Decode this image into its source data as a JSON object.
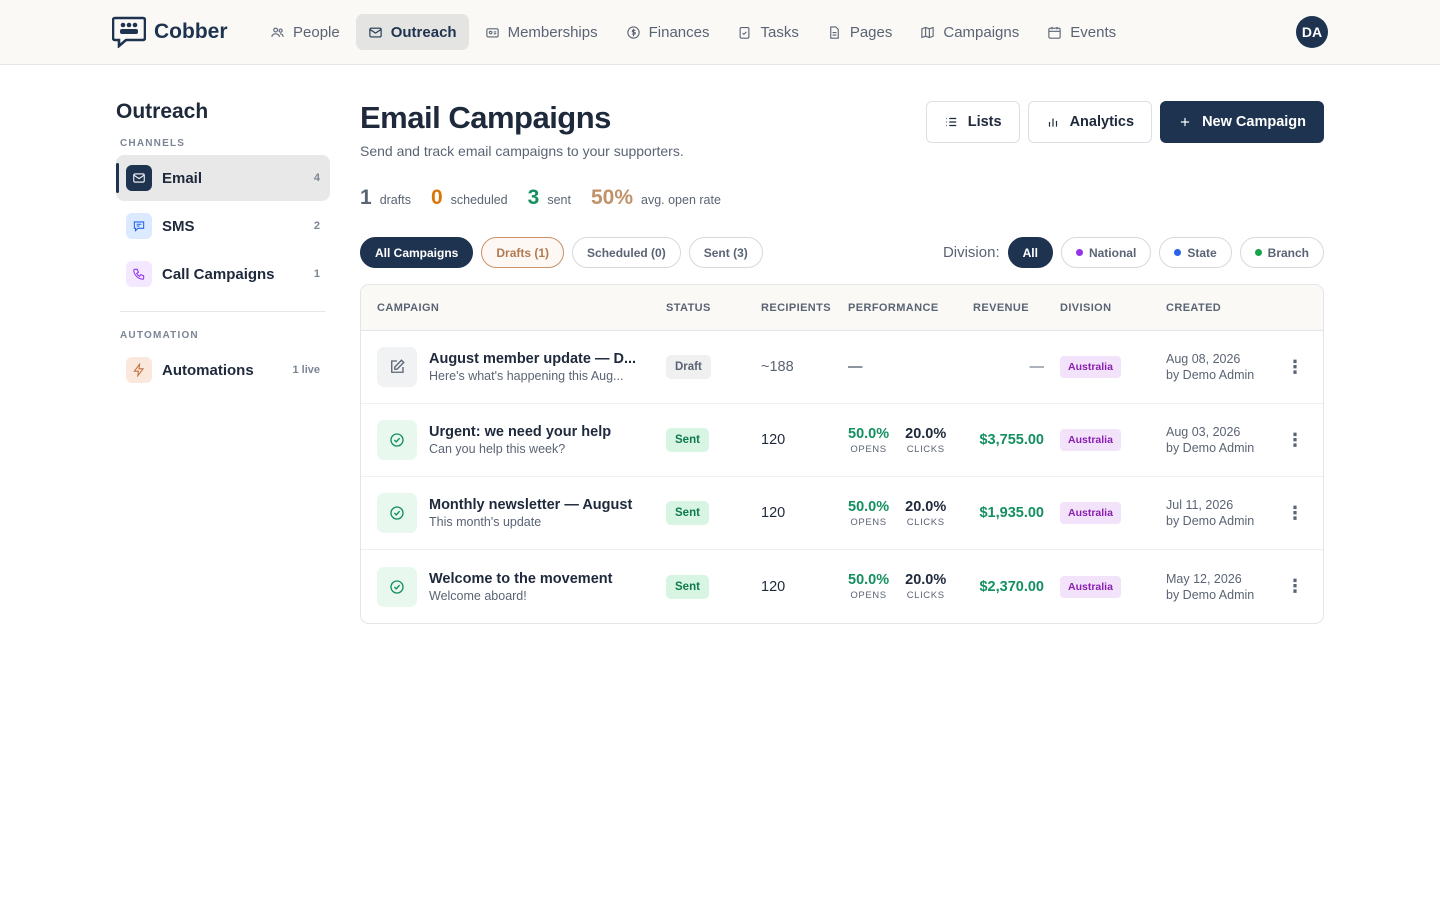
{
  "nav": {
    "brand": "Cobber",
    "items": [
      "People",
      "Outreach",
      "Memberships",
      "Finances",
      "Tasks",
      "Pages",
      "Campaigns",
      "Events"
    ],
    "avatar": "DA"
  },
  "sidebar": {
    "title": "Outreach",
    "sections": [
      {
        "label": "CHANNELS",
        "items": [
          {
            "label": "Email",
            "count": 4
          },
          {
            "label": "SMS",
            "count": 2
          },
          {
            "label": "Call Campaigns",
            "count": 1
          }
        ]
      },
      {
        "label": "AUTOMATION",
        "items": [
          {
            "label": "Automations",
            "count": "1 live"
          }
        ]
      }
    ]
  },
  "header": {
    "title": "Email Campaigns",
    "subtitle": "Send and track email campaigns to your supporters.",
    "buttons": [
      "Lists",
      "Analytics",
      "New Campaign"
    ]
  },
  "stats": [
    {
      "value": 1,
      "label": "drafts"
    },
    {
      "value": 0,
      "label": "scheduled"
    },
    {
      "value": 3,
      "label": "sent"
    },
    {
      "value": "50%",
      "label": "avg. open rate"
    }
  ],
  "filters": [
    "All Campaigns",
    "Drafts (1)",
    "Scheduled (0)",
    "Sent (3)"
  ],
  "division": {
    "label": "Division:",
    "options": [
      "All",
      "National",
      "State",
      "Branch"
    ]
  },
  "table": {
    "columns": [
      "CAMPAIGN",
      "STATUS",
      "RECIPIENTS",
      "PERFORMANCE",
      "REVENUE",
      "DIVISION",
      "CREATED"
    ],
    "rows": [
      {
        "title": "August member update — D...",
        "subtitle": "Here's what's happening this Aug...",
        "status": "Draft",
        "recipients": "~188",
        "performance": "—",
        "revenue": "—",
        "division": "Australia",
        "date": "Aug 08, 2026",
        "author": "by Demo Admin"
      },
      {
        "title": "Urgent: we need your help",
        "subtitle": "Can you help this week?",
        "status": "Sent",
        "recipients": 120,
        "performance": {
          "opens": "50.0%",
          "opens_label": "OPENS",
          "clicks": "20.0%",
          "clicks_label": "CLICKS"
        },
        "revenue": "$3,755.00",
        "division": "Australia",
        "date": "Aug 03, 2026",
        "author": "by Demo Admin"
      },
      {
        "title": "Monthly newsletter — August",
        "subtitle": "This month's update",
        "status": "Sent",
        "recipients": 120,
        "performance": {
          "opens": "50.0%",
          "opens_label": "OPENS",
          "clicks": "20.0%",
          "clicks_label": "CLICKS"
        },
        "revenue": "$1,935.00",
        "division": "Australia",
        "date": "Jul 11, 2026",
        "author": "by Demo Admin"
      },
      {
        "title": "Welcome to the movement",
        "subtitle": "Welcome aboard!",
        "status": "Sent",
        "recipients": 120,
        "performance": {
          "opens": "50.0%",
          "opens_label": "OPENS",
          "clicks": "20.0%",
          "clicks_label": "CLICKS"
        },
        "revenue": "$2,370.00",
        "division": "Australia",
        "date": "May 12, 2026",
        "author": "by Demo Admin"
      }
    ]
  }
}
